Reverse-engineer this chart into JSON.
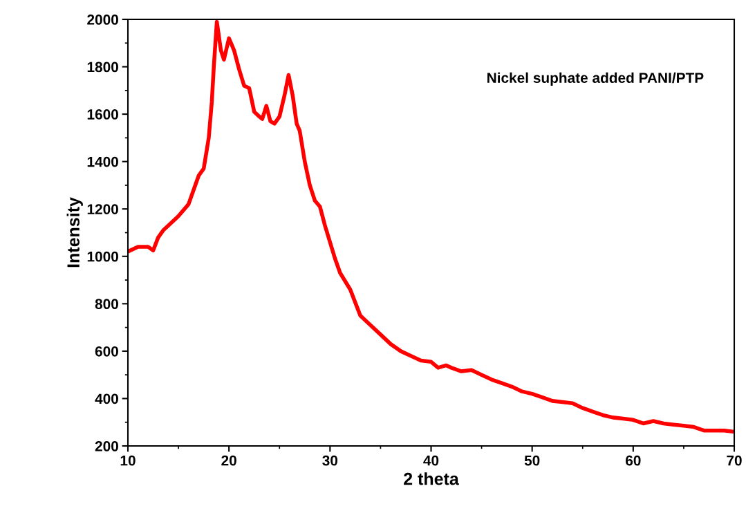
{
  "chart_data": {
    "type": "line",
    "xlabel": "2 theta",
    "ylabel": "Intensity",
    "annotations": [
      "Nickel suphate added PANI/PTP"
    ],
    "xlim": [
      10,
      70
    ],
    "xticks": [
      10,
      20,
      30,
      40,
      50,
      60,
      70
    ],
    "ylim": [
      200,
      2000
    ],
    "yticks": [
      200,
      400,
      600,
      800,
      1000,
      1200,
      1400,
      1600,
      1800,
      2000
    ],
    "marker": "none",
    "line_style": "solid",
    "series": [
      {
        "color": "#ff0000",
        "x": [
          10,
          11,
          12,
          12.5,
          13,
          13.5,
          14,
          15,
          16,
          16.5,
          17,
          17.5,
          18,
          18.3,
          18.5,
          18.8,
          19.2,
          19.5,
          20,
          20.5,
          21,
          21.5,
          22,
          22.5,
          23,
          23.3,
          23.7,
          24.1,
          24.5,
          25,
          25.5,
          25.9,
          26.3,
          26.7,
          27,
          27.5,
          28,
          28.5,
          29,
          29.5,
          30,
          30.5,
          31,
          32,
          33,
          34,
          35,
          36,
          37,
          38,
          39,
          40,
          40.7,
          41.5,
          42,
          43,
          44,
          45,
          46,
          47,
          48,
          49,
          50,
          51,
          52,
          53,
          54,
          55,
          56,
          57,
          58,
          59,
          60,
          61,
          62,
          63,
          64,
          65,
          66,
          67,
          68,
          69,
          70
        ],
        "values": [
          1020,
          1040,
          1040,
          1025,
          1080,
          1110,
          1130,
          1170,
          1220,
          1280,
          1340,
          1370,
          1500,
          1650,
          1800,
          1990,
          1870,
          1830,
          1920,
          1870,
          1790,
          1720,
          1710,
          1610,
          1590,
          1580,
          1635,
          1570,
          1560,
          1590,
          1680,
          1765,
          1680,
          1560,
          1530,
          1400,
          1300,
          1235,
          1210,
          1130,
          1060,
          990,
          930,
          860,
          750,
          710,
          670,
          630,
          600,
          580,
          560,
          555,
          530,
          540,
          530,
          515,
          520,
          500,
          480,
          465,
          450,
          430,
          420,
          405,
          390,
          385,
          380,
          360,
          345,
          330,
          320,
          315,
          310,
          295,
          305,
          295,
          290,
          285,
          280,
          265,
          265,
          265,
          260
        ]
      }
    ]
  }
}
